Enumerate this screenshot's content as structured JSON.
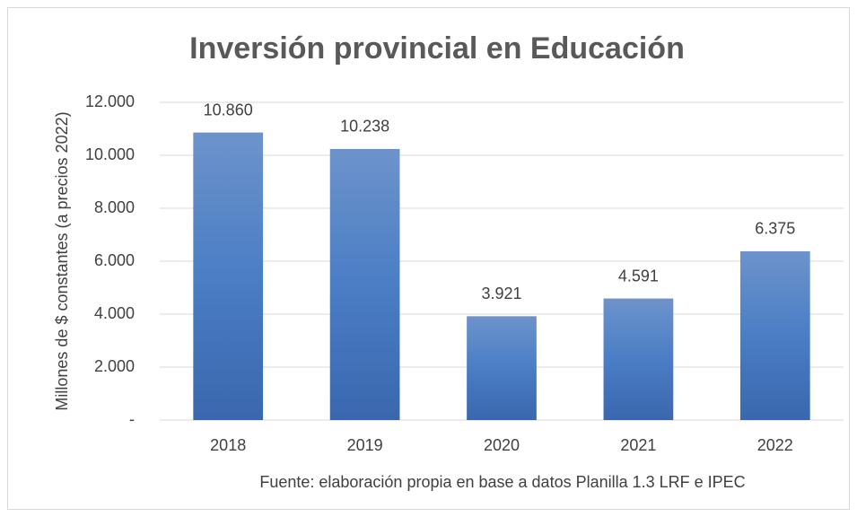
{
  "chart_data": {
    "type": "bar",
    "title": "Inversión provincial en Educación",
    "y_label": "Millones de $ constantes (a precios 2022)",
    "note": "Fuente: elaboración propia en base a datos Planilla 1.3 LRF e IPEC",
    "categories": [
      "2018",
      "2019",
      "2020",
      "2021",
      "2022"
    ],
    "values": [
      10860,
      10238,
      3921,
      4591,
      6375
    ],
    "value_labels": [
      "10.860",
      "10.238",
      "3.921",
      "4.591",
      "6.375"
    ],
    "color": "#4472c4",
    "ylim": [
      0,
      12000
    ],
    "yticks": [
      {
        "value": 0,
        "label": "-"
      },
      {
        "value": 2000,
        "label": "2.000"
      },
      {
        "value": 4000,
        "label": "4.000"
      },
      {
        "value": 6000,
        "label": "6.000"
      },
      {
        "value": 8000,
        "label": "8.000"
      },
      {
        "value": 10000,
        "label": "10.000"
      },
      {
        "value": 12000,
        "label": "12.000"
      }
    ],
    "grid": true
  }
}
